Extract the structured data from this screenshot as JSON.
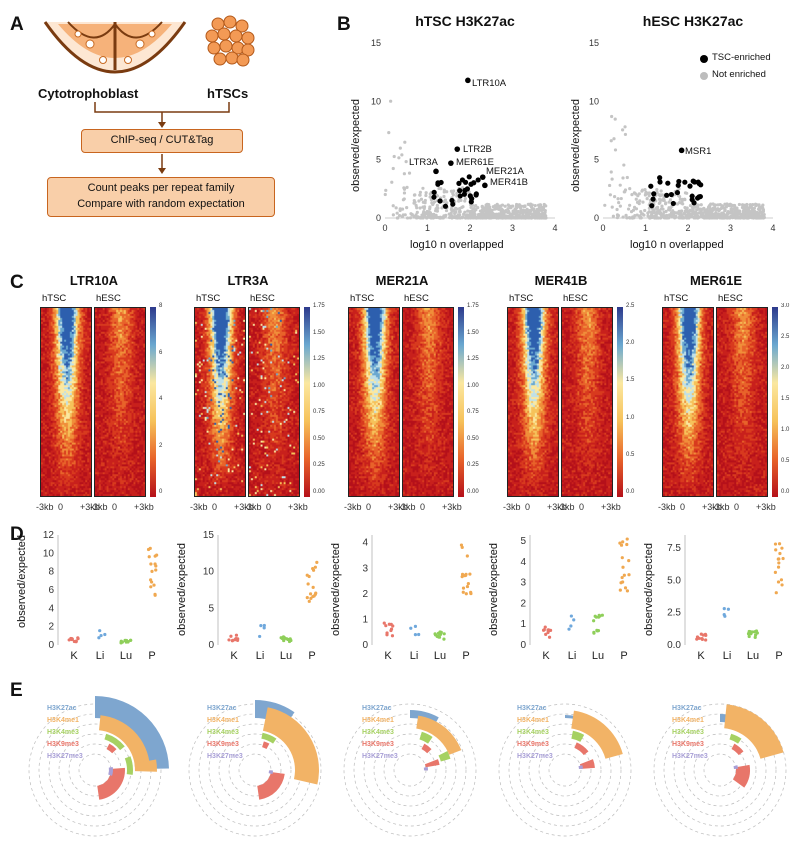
{
  "panels": {
    "A": "A",
    "B": "B",
    "C": "C",
    "D": "D",
    "E": "E"
  },
  "panelA": {
    "left_label": "Cytotrophoblast",
    "right_label": "hTSCs",
    "step1": "ChIP-seq / CUT&Tag",
    "step2_line1": "Count peaks per repeat family",
    "step2_line2": "Compare with random expectation"
  },
  "panelB": {
    "title_left": "hTSC H3K27ac",
    "title_right": "hESC H3K27ac",
    "xlabel": "log10 n overlapped",
    "ylabel": "observed/expected",
    "legend_enriched": "TSC-enriched",
    "legend_not": "Not enriched",
    "labels_left": [
      "LTR10A",
      "LTR2B",
      "MER61E",
      "LTR3A",
      "MER21A",
      "MER41B"
    ],
    "labels_right": [
      "MSR1"
    ],
    "yticks": [
      "0",
      "5",
      "10",
      "15"
    ],
    "xticks": [
      "0",
      "1",
      "2",
      "3",
      "4"
    ]
  },
  "panelC": {
    "families": [
      "LTR10A",
      "LTR3A",
      "MER21A",
      "MER41B",
      "MER61E"
    ],
    "sub_left": "hTSC",
    "sub_right": "hESC",
    "xticks": [
      "-3kb",
      "0",
      "+3kb"
    ],
    "scales": [
      [
        "8",
        "6",
        "4",
        "2",
        "0"
      ],
      [
        "1.75",
        "1.50",
        "1.25",
        "1.00",
        "0.75",
        "0.50",
        "0.25",
        "0.00"
      ],
      [
        "1.75",
        "1.50",
        "1.25",
        "1.00",
        "0.75",
        "0.50",
        "0.25",
        "0.00"
      ],
      [
        "2.5",
        "2.0",
        "1.5",
        "1.0",
        "0.5",
        "0.0"
      ],
      [
        "3.0",
        "2.5",
        "2.0",
        "1.5",
        "1.0",
        "0.5",
        "0.0"
      ]
    ]
  },
  "panelD": {
    "ylabel": "observed/expected",
    "categories": [
      "K",
      "Li",
      "Lu",
      "P"
    ],
    "yticks": [
      [
        "0",
        "2",
        "4",
        "6",
        "8",
        "10",
        "12"
      ],
      [
        "0",
        "5",
        "10",
        "15"
      ],
      [
        "0",
        "1",
        "2",
        "3",
        "4"
      ],
      [
        "0",
        "1",
        "2",
        "3",
        "4",
        "5"
      ],
      [
        "0.0",
        "2.5",
        "5.0",
        "7.5"
      ]
    ]
  },
  "panelE": {
    "marks": [
      "H3K27ac",
      "H3K4me1",
      "H3K4me3",
      "H3K9me3",
      "H3K27me3"
    ]
  },
  "colors": {
    "flow_fill": "#f9cfa9",
    "flow_border": "#c8651f",
    "k27ac": "#7ea6cf",
    "k4me1": "#f2b366",
    "k4me3": "#a6d162",
    "k9me3": "#e8766a",
    "k27me3": "#a89fd6",
    "dot_K": "#e8766a",
    "dot_Li": "#6fa8dc",
    "dot_Lu": "#8fcf5a",
    "dot_P": "#f0a850"
  },
  "chart_data": [
    {
      "type": "scatter",
      "title": "hTSC H3K27ac",
      "xlabel": "log10 n overlapped",
      "ylabel": "observed/expected",
      "xlim": [
        0,
        4
      ],
      "ylim": [
        0,
        15
      ],
      "series": [
        {
          "name": "TSC-enriched",
          "points": [
            {
              "label": "LTR10A",
              "x": 1.95,
              "y": 11.8
            },
            {
              "label": "LTR2B",
              "x": 1.7,
              "y": 5.9
            },
            {
              "label": "MER61E",
              "x": 1.55,
              "y": 4.7
            },
            {
              "label": "LTR3A",
              "x": 1.2,
              "y": 4.0
            },
            {
              "label": "MER21A",
              "x": 2.3,
              "y": 3.5
            },
            {
              "label": "MER41B",
              "x": 2.35,
              "y": 2.8
            }
          ]
        }
      ]
    },
    {
      "type": "scatter",
      "title": "hESC H3K27ac",
      "xlabel": "log10 n overlapped",
      "ylabel": "observed/expected",
      "xlim": [
        0,
        4
      ],
      "ylim": [
        0,
        15
      ],
      "series": [
        {
          "name": "TSC-enriched",
          "points": [
            {
              "label": "MSR1",
              "x": 1.85,
              "y": 5.8
            }
          ]
        }
      ]
    }
  ]
}
